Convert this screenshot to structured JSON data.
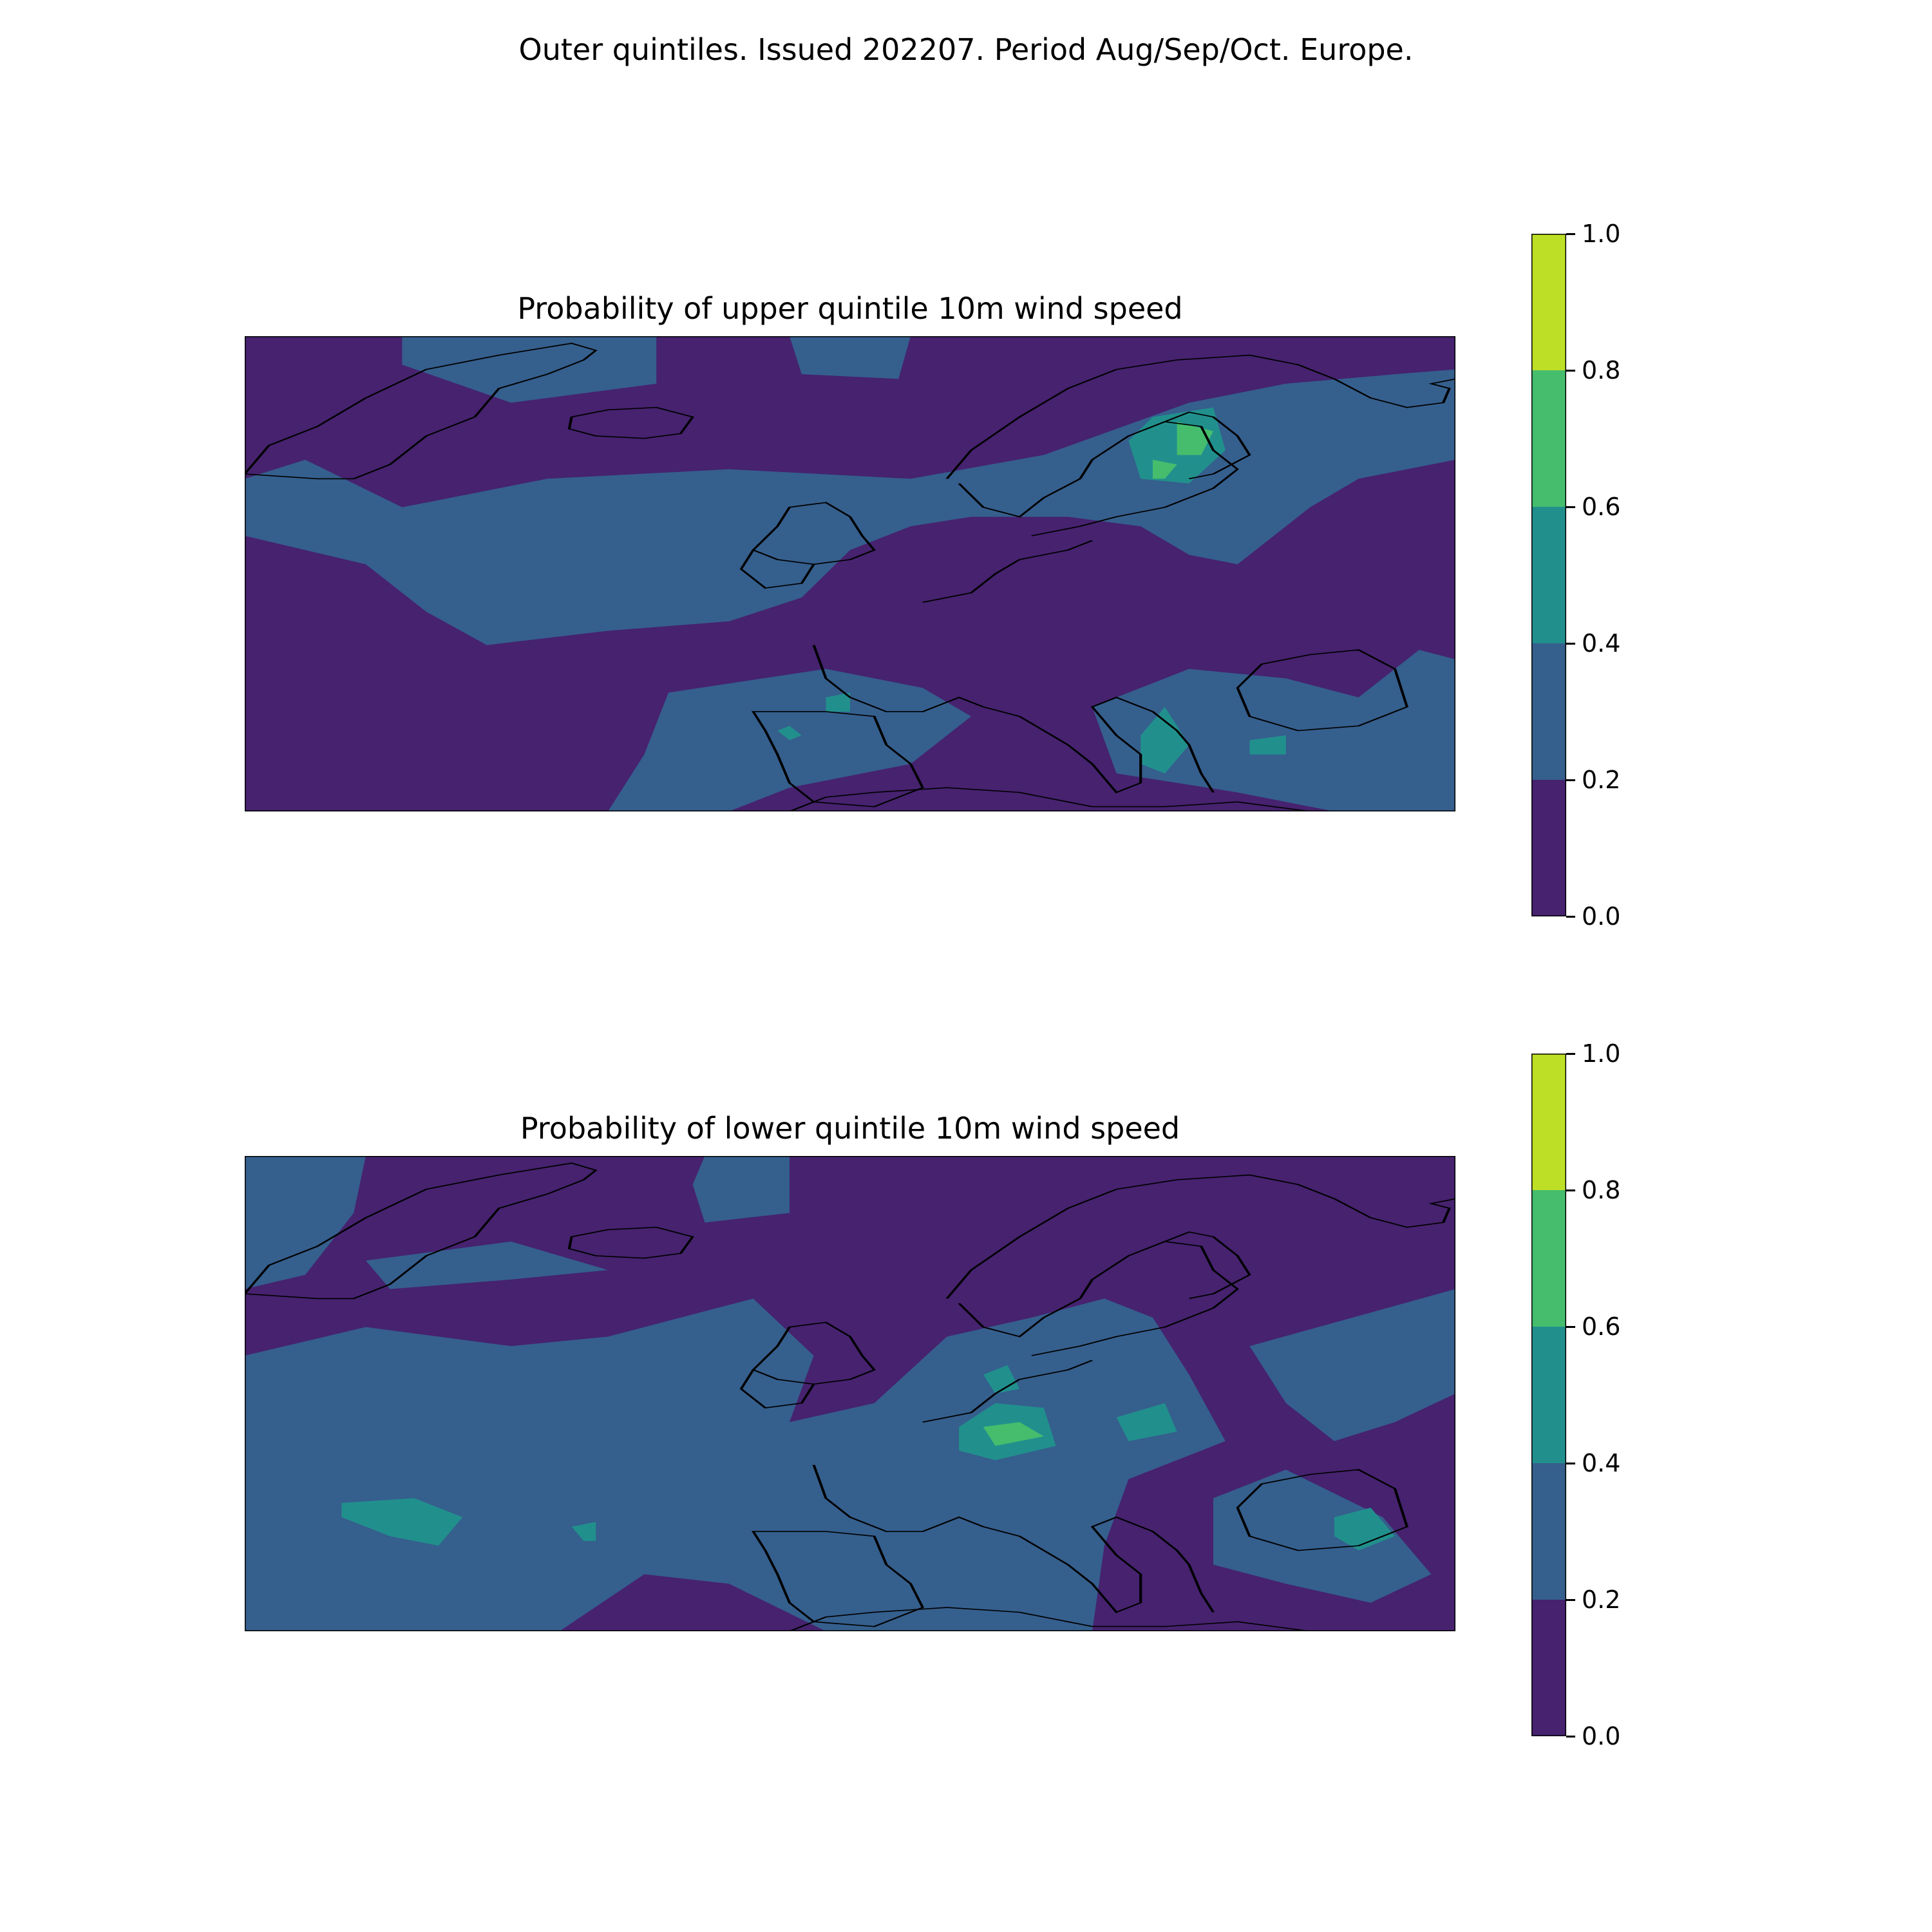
{
  "suptitle": "Outer quintiles. Issued 202207. Period Aug/Sep/Oct. Europe.",
  "levels": [
    0.0,
    0.2,
    0.4,
    0.6,
    0.8,
    1.0
  ],
  "level_labels": [
    "0.0",
    "0.2",
    "0.4",
    "0.6",
    "0.8",
    "1.0"
  ],
  "colors": [
    "#46226f",
    "#355f8d",
    "#21908d",
    "#45bd6d",
    "#bddf26"
  ],
  "coastline_color": "#000000",
  "panels": [
    {
      "id": "upper",
      "title": "Probability of upper quintile 10m wind speed",
      "field": "upper-quintile-probability",
      "regions": [
        {
          "level": 0.2,
          "pts": [
            [
              0.13,
              0.36
            ],
            [
              0.25,
              0.3
            ],
            [
              0.4,
              0.28
            ],
            [
              0.55,
              0.3
            ],
            [
              0.66,
              0.25
            ],
            [
              0.78,
              0.14
            ],
            [
              0.86,
              0.1
            ],
            [
              0.95,
              0.08
            ],
            [
              1.0,
              0.07
            ],
            [
              1.0,
              0.26
            ],
            [
              0.92,
              0.3
            ],
            [
              0.88,
              0.36
            ],
            [
              0.85,
              0.42
            ],
            [
              0.82,
              0.48
            ],
            [
              0.78,
              0.46
            ],
            [
              0.74,
              0.4
            ],
            [
              0.68,
              0.38
            ],
            [
              0.6,
              0.38
            ],
            [
              0.55,
              0.4
            ],
            [
              0.5,
              0.45
            ],
            [
              0.46,
              0.55
            ],
            [
              0.4,
              0.6
            ],
            [
              0.3,
              0.62
            ],
            [
              0.2,
              0.65
            ],
            [
              0.15,
              0.58
            ],
            [
              0.1,
              0.48
            ],
            [
              0.0,
              0.42
            ],
            [
              0.0,
              0.3
            ],
            [
              0.05,
              0.26
            ]
          ]
        },
        {
          "level": 0.2,
          "pts": [
            [
              0.13,
              0.0
            ],
            [
              0.34,
              0.0
            ],
            [
              0.34,
              0.1
            ],
            [
              0.22,
              0.14
            ],
            [
              0.13,
              0.06
            ]
          ]
        },
        {
          "level": 0.2,
          "pts": [
            [
              0.45,
              0.0
            ],
            [
              0.55,
              0.0
            ],
            [
              0.54,
              0.09
            ],
            [
              0.46,
              0.08
            ]
          ]
        },
        {
          "level": 0.2,
          "pts": [
            [
              0.35,
              0.75
            ],
            [
              0.48,
              0.7
            ],
            [
              0.56,
              0.74
            ],
            [
              0.6,
              0.8
            ],
            [
              0.55,
              0.9
            ],
            [
              0.45,
              0.95
            ],
            [
              0.4,
              1.0
            ],
            [
              0.3,
              1.0
            ],
            [
              0.33,
              0.88
            ]
          ]
        },
        {
          "level": 0.2,
          "pts": [
            [
              0.7,
              0.78
            ],
            [
              0.78,
              0.7
            ],
            [
              0.86,
              0.72
            ],
            [
              0.92,
              0.76
            ],
            [
              0.97,
              0.66
            ],
            [
              1.0,
              0.68
            ],
            [
              1.0,
              1.0
            ],
            [
              0.9,
              1.0
            ],
            [
              0.82,
              0.96
            ],
            [
              0.72,
              0.92
            ]
          ]
        },
        {
          "level": 0.4,
          "pts": [
            [
              0.75,
              0.17
            ],
            [
              0.8,
              0.15
            ],
            [
              0.81,
              0.24
            ],
            [
              0.78,
              0.31
            ],
            [
              0.74,
              0.3
            ],
            [
              0.73,
              0.22
            ]
          ]
        },
        {
          "level": 0.4,
          "pts": [
            [
              0.74,
              0.84
            ],
            [
              0.76,
              0.78
            ],
            [
              0.78,
              0.86
            ],
            [
              0.76,
              0.92
            ],
            [
              0.74,
              0.9
            ]
          ]
        },
        {
          "level": 0.4,
          "pts": [
            [
              0.83,
              0.85
            ],
            [
              0.86,
              0.84
            ],
            [
              0.86,
              0.88
            ],
            [
              0.83,
              0.88
            ]
          ]
        },
        {
          "level": 0.4,
          "pts": [
            [
              0.44,
              0.83
            ],
            [
              0.45,
              0.82
            ],
            [
              0.46,
              0.84
            ],
            [
              0.45,
              0.85
            ]
          ]
        },
        {
          "level": 0.4,
          "pts": [
            [
              0.48,
              0.76
            ],
            [
              0.5,
              0.75
            ],
            [
              0.5,
              0.79
            ],
            [
              0.48,
              0.79
            ]
          ]
        },
        {
          "level": 0.6,
          "pts": [
            [
              0.77,
              0.18
            ],
            [
              0.8,
              0.2
            ],
            [
              0.79,
              0.25
            ],
            [
              0.77,
              0.25
            ]
          ]
        },
        {
          "level": 0.6,
          "pts": [
            [
              0.75,
              0.26
            ],
            [
              0.77,
              0.27
            ],
            [
              0.76,
              0.3
            ],
            [
              0.75,
              0.3
            ]
          ]
        }
      ]
    },
    {
      "id": "lower",
      "title": "Probability of lower quintile 10m wind speed",
      "field": "lower-quintile-probability",
      "regions": [
        {
          "level": 0.2,
          "pts": [
            [
              0.0,
              0.0
            ],
            [
              0.1,
              0.0
            ],
            [
              0.09,
              0.12
            ],
            [
              0.05,
              0.25
            ],
            [
              0.0,
              0.28
            ]
          ]
        },
        {
          "level": 0.2,
          "pts": [
            [
              0.0,
              0.42
            ],
            [
              0.1,
              0.36
            ],
            [
              0.22,
              0.4
            ],
            [
              0.3,
              0.38
            ],
            [
              0.42,
              0.3
            ],
            [
              0.47,
              0.42
            ],
            [
              0.45,
              0.56
            ],
            [
              0.52,
              0.52
            ],
            [
              0.58,
              0.38
            ],
            [
              0.65,
              0.34
            ],
            [
              0.71,
              0.3
            ],
            [
              0.75,
              0.34
            ],
            [
              0.78,
              0.46
            ],
            [
              0.81,
              0.6
            ],
            [
              0.73,
              0.68
            ],
            [
              0.71,
              0.82
            ],
            [
              0.7,
              1.0
            ],
            [
              0.48,
              1.0
            ],
            [
              0.4,
              0.9
            ],
            [
              0.33,
              0.88
            ],
            [
              0.26,
              1.0
            ],
            [
              0.0,
              1.0
            ]
          ]
        },
        {
          "level": 0.2,
          "pts": [
            [
              0.83,
              0.4
            ],
            [
              1.0,
              0.28
            ],
            [
              1.0,
              0.5
            ],
            [
              0.95,
              0.56
            ],
            [
              0.9,
              0.6
            ],
            [
              0.86,
              0.52
            ]
          ]
        },
        {
          "level": 0.2,
          "pts": [
            [
              0.8,
              0.72
            ],
            [
              0.86,
              0.66
            ],
            [
              0.94,
              0.76
            ],
            [
              0.98,
              0.88
            ],
            [
              0.93,
              0.94
            ],
            [
              0.86,
              0.9
            ],
            [
              0.8,
              0.86
            ]
          ]
        },
        {
          "level": 0.2,
          "pts": [
            [
              0.38,
              0.0
            ],
            [
              0.45,
              0.0
            ],
            [
              0.45,
              0.12
            ],
            [
              0.38,
              0.14
            ],
            [
              0.37,
              0.06
            ]
          ]
        },
        {
          "level": 0.2,
          "pts": [
            [
              0.1,
              0.22
            ],
            [
              0.22,
              0.18
            ],
            [
              0.3,
              0.24
            ],
            [
              0.22,
              0.26
            ],
            [
              0.12,
              0.28
            ]
          ]
        },
        {
          "level": 0.4,
          "pts": [
            [
              0.08,
              0.73
            ],
            [
              0.14,
              0.72
            ],
            [
              0.18,
              0.76
            ],
            [
              0.16,
              0.82
            ],
            [
              0.12,
              0.8
            ],
            [
              0.08,
              0.76
            ]
          ]
        },
        {
          "level": 0.4,
          "pts": [
            [
              0.27,
              0.78
            ],
            [
              0.29,
              0.77
            ],
            [
              0.29,
              0.81
            ],
            [
              0.28,
              0.81
            ]
          ]
        },
        {
          "level": 0.4,
          "pts": [
            [
              0.59,
              0.57
            ],
            [
              0.62,
              0.52
            ],
            [
              0.66,
              0.53
            ],
            [
              0.67,
              0.61
            ],
            [
              0.62,
              0.64
            ],
            [
              0.59,
              0.62
            ]
          ]
        },
        {
          "level": 0.4,
          "pts": [
            [
              0.72,
              0.55
            ],
            [
              0.76,
              0.52
            ],
            [
              0.77,
              0.58
            ],
            [
              0.73,
              0.6
            ]
          ]
        },
        {
          "level": 0.4,
          "pts": [
            [
              0.61,
              0.46
            ],
            [
              0.63,
              0.44
            ],
            [
              0.64,
              0.49
            ],
            [
              0.62,
              0.5
            ]
          ]
        },
        {
          "level": 0.4,
          "pts": [
            [
              0.9,
              0.76
            ],
            [
              0.93,
              0.74
            ],
            [
              0.95,
              0.8
            ],
            [
              0.92,
              0.83
            ],
            [
              0.9,
              0.8
            ]
          ]
        },
        {
          "level": 0.6,
          "pts": [
            [
              0.61,
              0.57
            ],
            [
              0.64,
              0.56
            ],
            [
              0.66,
              0.59
            ],
            [
              0.62,
              0.61
            ]
          ]
        }
      ]
    }
  ]
}
